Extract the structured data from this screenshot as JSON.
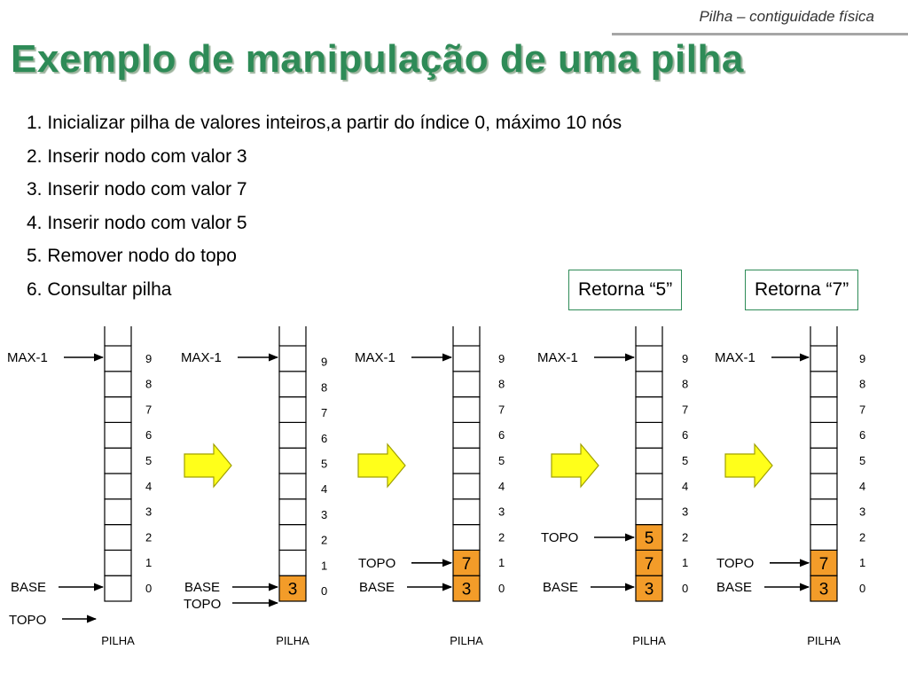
{
  "header": {
    "section_title": "Pilha – contiguidade física"
  },
  "title": "Exemplo de manipulação de uma pilha",
  "steps": [
    "1. Inicializar pilha de valores inteiros,a partir do índice 0, máximo 10 nós",
    "2. Inserir nodo com valor 3",
    "3. Inserir nodo com valor 7",
    "4. Inserir nodo com valor 5",
    "5. Remover nodo do topo",
    "6. Consultar pilha"
  ],
  "returns": [
    "Retorna “5”",
    "Retorna “7”"
  ],
  "labels": {
    "max": "MAX-1",
    "base": "BASE",
    "topo": "TOPO",
    "pilha": "PILHA"
  },
  "indices": [
    "0",
    "1",
    "2",
    "3",
    "4",
    "5",
    "6",
    "7",
    "8",
    "9"
  ],
  "colors": {
    "title": "#2e8b57",
    "filled_cell": "#f39c29",
    "arrow_fill": "#ffff1a",
    "arrow_stroke": "#a0a000"
  },
  "stacks": [
    {
      "values": [],
      "topo_index": -1
    },
    {
      "values": [
        "3"
      ],
      "topo_index": 0
    },
    {
      "values": [
        "3",
        "7"
      ],
      "topo_index": 1
    },
    {
      "values": [
        "3",
        "7",
        "5"
      ],
      "topo_index": 2
    },
    {
      "values": [
        "3",
        "7"
      ],
      "topo_index": 1
    }
  ]
}
